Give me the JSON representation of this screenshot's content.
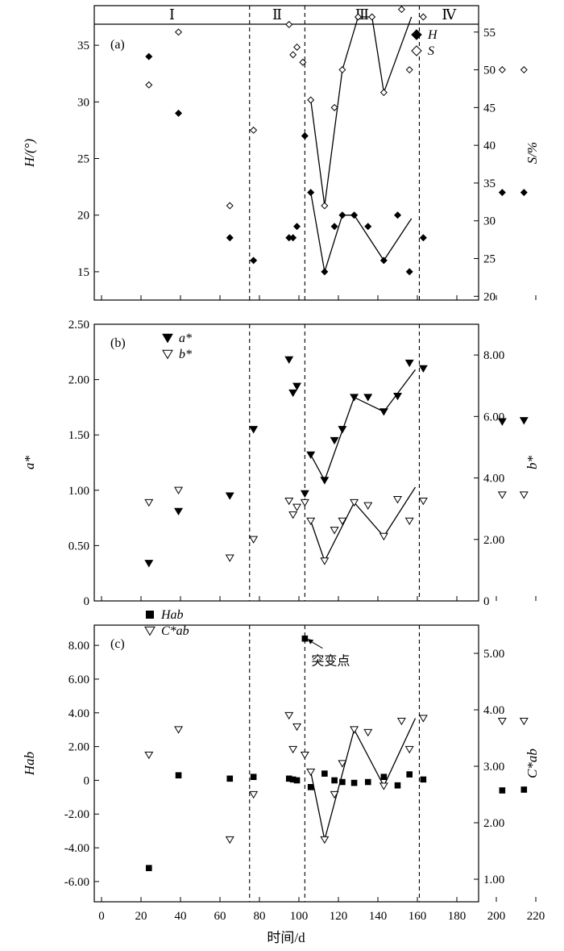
{
  "phases": [
    "Ⅰ",
    "Ⅱ",
    "Ⅲ",
    "Ⅳ"
  ],
  "boundaries_d": [
    75,
    103,
    161
  ],
  "xlabel": "时间/d",
  "xticks": [
    "0",
    "20",
    "40",
    "60",
    "80",
    "100",
    "120",
    "140",
    "160",
    "180",
    "200",
    "220"
  ],
  "xlim": [
    -7,
    230
  ],
  "chart_data": [
    {
      "panel": "(a)",
      "type": "scatter",
      "ylabel_left": "H/(°)",
      "ylabel_right": "S/%",
      "ylim_left": [
        12.5,
        38.5
      ],
      "ylim_right": [
        19.5,
        58.5
      ],
      "yticks_left": [
        "15",
        "20",
        "25",
        "30",
        "35"
      ],
      "yticks_right": [
        "20",
        "25",
        "30",
        "35",
        "40",
        "45",
        "50",
        "55"
      ],
      "series": [
        {
          "name": "H",
          "axis": "left",
          "marker": "diamond-filled",
          "x": [
            24,
            39,
            65,
            77,
            95,
            97,
            99,
            103,
            106,
            113,
            118,
            122,
            128,
            135,
            143,
            150,
            156,
            163,
            203,
            214
          ],
          "y": [
            34,
            29,
            18,
            16,
            18,
            18,
            19,
            27,
            22,
            15,
            19,
            20,
            20,
            19,
            16,
            20,
            15,
            18,
            22,
            22
          ]
        },
        {
          "name": "S",
          "axis": "right",
          "marker": "diamond-open",
          "x": [
            24,
            39,
            65,
            77,
            95,
            97,
            99,
            102,
            106,
            113,
            118,
            122,
            130,
            137,
            143,
            152,
            156,
            163,
            203,
            214
          ],
          "y": [
            48,
            55,
            32,
            42,
            56,
            52,
            53,
            51,
            46,
            32,
            45,
            50,
            57,
            57,
            47,
            58,
            50,
            57,
            50,
            50
          ]
        }
      ],
      "fit_lines": [
        {
          "axis": "left",
          "x": [
            106,
            113,
            122,
            128,
            143,
            157
          ],
          "y": [
            22,
            15,
            20,
            20,
            16,
            19.7
          ]
        },
        {
          "axis": "right",
          "x": [
            106,
            113,
            122,
            130,
            137,
            143,
            157
          ],
          "y": [
            46,
            32,
            50,
            57,
            57,
            47,
            57
          ]
        }
      ]
    },
    {
      "panel": "(b)",
      "type": "scatter",
      "ylabel_left": "a*",
      "ylabel_right": "b*",
      "ylim_left": [
        0,
        2.5
      ],
      "ylim_right": [
        0,
        9
      ],
      "yticks_left": [
        "0",
        "0.50",
        "1.00",
        "1.50",
        "2.00",
        "2.50"
      ],
      "yticks_right": [
        "0",
        "2.00",
        "4.00",
        "6.00",
        "8.00"
      ],
      "series": [
        {
          "name": "a*",
          "axis": "left",
          "marker": "triangle-down-filled",
          "x": [
            24,
            39,
            65,
            77,
            95,
            97,
            99,
            103,
            106,
            113,
            118,
            122,
            128,
            135,
            143,
            150,
            156,
            163,
            203,
            214
          ],
          "y": [
            0.34,
            0.81,
            0.95,
            1.55,
            2.18,
            1.88,
            1.94,
            0.97,
            1.32,
            1.09,
            1.45,
            1.55,
            1.84,
            1.84,
            1.71,
            1.85,
            2.15,
            2.1,
            1.62,
            1.63
          ]
        },
        {
          "name": "b*",
          "axis": "right",
          "marker": "triangle-down-open",
          "x": [
            24,
            39,
            65,
            77,
            95,
            97,
            99,
            103,
            106,
            113,
            118,
            122,
            128,
            135,
            143,
            150,
            156,
            163,
            203,
            214
          ],
          "y": [
            3.2,
            3.6,
            1.4,
            2.0,
            3.25,
            2.8,
            3.05,
            3.2,
            2.6,
            1.3,
            2.3,
            2.6,
            3.2,
            3.1,
            2.1,
            3.3,
            2.6,
            3.25,
            3.45,
            3.45
          ]
        }
      ],
      "fit_lines": [
        {
          "axis": "left",
          "x": [
            106,
            113,
            128,
            143,
            159
          ],
          "y": [
            1.32,
            1.09,
            1.84,
            1.71,
            2.09
          ]
        },
        {
          "axis": "right",
          "x": [
            106,
            113,
            128,
            143,
            159
          ],
          "y": [
            2.6,
            1.3,
            3.2,
            2.1,
            3.7
          ]
        }
      ]
    },
    {
      "panel": "(c)",
      "type": "scatter",
      "ylabel_left": "Hab",
      "ylabel_right": "C*ab",
      "ylim_left": [
        -7.2,
        9.2
      ],
      "ylim_right": [
        0.6,
        5.5
      ],
      "yticks_left": [
        "-6.00",
        "-4.00",
        "-2.00",
        "0",
        "2.00",
        "4.00",
        "6.00",
        "8.00"
      ],
      "yticks_right": [
        "1.00",
        "2.00",
        "3.00",
        "4.00",
        "5.00"
      ],
      "annotation": "突变点",
      "series": [
        {
          "name": "Hab",
          "axis": "left",
          "marker": "square-filled",
          "x": [
            24,
            39,
            65,
            77,
            95,
            97,
            99,
            103,
            106,
            113,
            118,
            122,
            128,
            135,
            143,
            150,
            156,
            163,
            203,
            214
          ],
          "y": [
            -5.2,
            0.3,
            0.1,
            0.2,
            0.1,
            0.05,
            0.0,
            8.4,
            -0.4,
            0.4,
            0.0,
            -0.1,
            -0.15,
            -0.1,
            0.2,
            -0.3,
            0.35,
            0.05,
            -0.6,
            -0.55
          ]
        },
        {
          "name": "C*ab",
          "axis": "right",
          "marker": "triangle-down-open",
          "x": [
            24,
            39,
            65,
            77,
            95,
            97,
            99,
            103,
            106,
            113,
            118,
            122,
            128,
            135,
            143,
            152,
            156,
            163,
            203,
            214
          ],
          "y": [
            3.2,
            3.65,
            1.7,
            2.5,
            3.9,
            3.3,
            3.7,
            3.2,
            2.9,
            1.7,
            2.5,
            3.05,
            3.65,
            3.6,
            2.65,
            3.8,
            3.3,
            3.85,
            3.8,
            3.8
          ]
        }
      ],
      "fit_lines": [
        {
          "axis": "right",
          "x": [
            106,
            113,
            128,
            143,
            159
          ],
          "y": [
            2.9,
            1.7,
            3.65,
            2.65,
            3.85
          ]
        }
      ]
    }
  ]
}
